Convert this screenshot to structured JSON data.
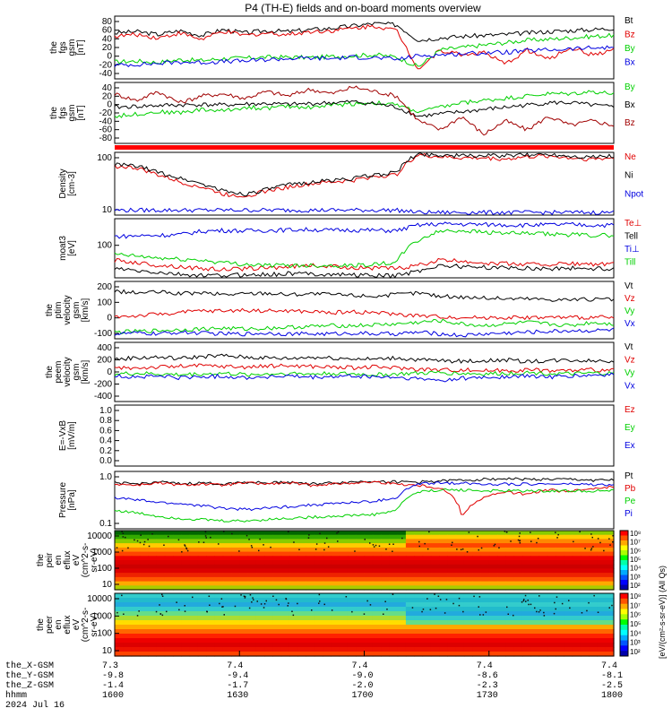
{
  "title": "P4 (TH-E) fields and on-board moments overview",
  "date_label": "2024 Jul 16",
  "colorbar_label": "[eV/(cm²-s-sr-eV)] (All Qs)",
  "ephemeris": {
    "rows": [
      {
        "name": "the_X-GSM",
        "values": [
          "7.3",
          "7.4",
          "7.4",
          "7.4",
          "7.4"
        ]
      },
      {
        "name": "the_Y-GSM",
        "values": [
          "-9.8",
          "-9.4",
          "-9.0",
          "-8.6",
          "-8.1"
        ]
      },
      {
        "name": "the_Z-GSM",
        "values": [
          "-1.4",
          "-1.7",
          "-2.0",
          "-2.3",
          "-2.5"
        ]
      },
      {
        "name": "hhmm",
        "values": [
          "1600",
          "1630",
          "1700",
          "1730",
          "1800"
        ]
      }
    ]
  },
  "colors": {
    "black": "#000000",
    "red": "#e00000",
    "green": "#00d000",
    "blue": "#0000e0",
    "darkred": "#a00000",
    "bar": "#ff0000"
  },
  "chart_data": [
    {
      "type": "line",
      "ylabel": [
        "the",
        "fgs",
        "gsm",
        "[nT]"
      ],
      "yticks": [
        "80",
        "60",
        "40",
        "20",
        "0",
        "-20",
        "-40"
      ],
      "ylim": [
        -40,
        90
      ],
      "series": [
        {
          "name": "Bt",
          "color": "black",
          "values": [
            55,
            58,
            52,
            60,
            50,
            62,
            55,
            60,
            58,
            62,
            65,
            70,
            75,
            72,
            40,
            45,
            48,
            50,
            52,
            55,
            58,
            60,
            62,
            65
          ]
        },
        {
          "name": "Bz",
          "color": "red",
          "values": [
            48,
            52,
            45,
            55,
            42,
            58,
            50,
            55,
            52,
            58,
            60,
            65,
            70,
            60,
            -20,
            20,
            10,
            15,
            -10,
            20,
            0,
            25,
            10,
            20
          ]
        },
        {
          "name": "By",
          "color": "green",
          "values": [
            -5,
            -3,
            -6,
            0,
            -2,
            2,
            3,
            5,
            5,
            4,
            6,
            8,
            10,
            5,
            -15,
            20,
            25,
            30,
            35,
            40,
            42,
            45,
            48,
            50
          ]
        },
        {
          "name": "Bx",
          "color": "blue",
          "values": [
            -12,
            -10,
            -8,
            -5,
            -6,
            -4,
            -3,
            0,
            2,
            3,
            2,
            5,
            4,
            0,
            8,
            10,
            12,
            14,
            15,
            18,
            20,
            22,
            24,
            25
          ]
        }
      ]
    },
    {
      "type": "line",
      "ylabel": [
        "the",
        "fgs",
        "gsm",
        "[nT]"
      ],
      "yticks": [
        "40",
        "20",
        "0",
        "-20",
        "-40",
        "-60",
        "-80"
      ],
      "ylim": [
        -90,
        45
      ],
      "series": [
        {
          "name": "By",
          "color": "green",
          "values": [
            -30,
            -25,
            -20,
            -22,
            -15,
            -18,
            -10,
            -12,
            -8,
            -10,
            -5,
            -2,
            0,
            -5,
            -20,
            -10,
            0,
            5,
            10,
            15,
            20,
            20,
            25,
            20
          ]
        },
        {
          "name": "Bx",
          "color": "black",
          "values": [
            -10,
            -8,
            -6,
            -5,
            -4,
            -5,
            -3,
            -2,
            -4,
            -2,
            0,
            2,
            -2,
            -10,
            -30,
            -25,
            -20,
            -15,
            -10,
            -5,
            0,
            0,
            -5,
            -10
          ]
        },
        {
          "name": "Bz",
          "color": "darkred",
          "values": [
            20,
            5,
            25,
            0,
            15,
            20,
            10,
            25,
            15,
            30,
            20,
            35,
            25,
            15,
            -40,
            -60,
            -30,
            -70,
            -40,
            -60,
            -30,
            -50,
            -40,
            -50
          ]
        }
      ]
    },
    {
      "type": "line",
      "ylabel": [
        "Density",
        "[cm-3]"
      ],
      "yticks": [
        "100",
        "10"
      ],
      "yscale": "log",
      "ylim": [
        3,
        110
      ],
      "series": [
        {
          "name": "Ne",
          "color": "red",
          "values": [
            50,
            45,
            30,
            20,
            15,
            10,
            9,
            12,
            15,
            18,
            20,
            22,
            28,
            30,
            95,
            85,
            80,
            80,
            75,
            85,
            90,
            80,
            75,
            80
          ]
        },
        {
          "name": "Ni",
          "color": "black",
          "values": [
            55,
            50,
            35,
            25,
            18,
            12,
            10,
            13,
            17,
            20,
            22,
            25,
            30,
            35,
            100,
            95,
            90,
            92,
            90,
            95,
            100,
            90,
            85,
            90
          ]
        },
        {
          "name": "Npot",
          "color": "blue",
          "values": [
            4,
            4,
            4,
            4,
            4,
            4,
            4,
            4,
            4,
            4,
            4,
            4,
            4,
            4,
            3.5,
            3.5,
            3.5,
            3.5,
            3.5,
            3.5,
            3.5,
            3.5,
            3.5,
            3.5
          ]
        }
      ]
    },
    {
      "type": "line",
      "ylabel": [
        "moat3",
        "[eV]"
      ],
      "yticks": [
        "100"
      ],
      "yscale": "log",
      "ylim": [
        15,
        400
      ],
      "series": [
        {
          "name": "Te⊥",
          "color": "red",
          "values": [
            40,
            35,
            30,
            28,
            25,
            24,
            25,
            26,
            28,
            30,
            28,
            27,
            26,
            25,
            30,
            40,
            38,
            35,
            33,
            32,
            32,
            33,
            32,
            32
          ]
        },
        {
          "name": "Tell",
          "color": "black",
          "values": [
            25,
            22,
            20,
            18,
            17,
            17,
            18,
            18,
            19,
            19,
            18,
            18,
            17,
            17,
            22,
            30,
            28,
            27,
            26,
            26,
            25,
            26,
            25,
            25
          ]
        },
        {
          "name": "Ti⊥",
          "color": "blue",
          "values": [
            150,
            155,
            160,
            165,
            200,
            210,
            205,
            210,
            215,
            220,
            210,
            215,
            210,
            205,
            280,
            300,
            295,
            290,
            285,
            280,
            285,
            290,
            280,
            280
          ]
        },
        {
          "name": "Till",
          "color": "green",
          "values": [
            55,
            50,
            45,
            42,
            40,
            35,
            32,
            30,
            30,
            30,
            30,
            30,
            32,
            35,
            120,
            200,
            210,
            190,
            180,
            175,
            170,
            165,
            160,
            160
          ]
        }
      ]
    },
    {
      "type": "line",
      "ylabel": [
        "the",
        "ptim",
        "velocity",
        "gsm",
        "[km/s]"
      ],
      "yticks": [
        "200",
        "100",
        "0",
        "-100"
      ],
      "ylim": [
        -130,
        220
      ],
      "series": [
        {
          "name": "Vt",
          "color": "black",
          "values": [
            160,
            150,
            155,
            145,
            150,
            140,
            145,
            150,
            140,
            145,
            140,
            135,
            130,
            140,
            150,
            130,
            125,
            120,
            115,
            115,
            110,
            110,
            110,
            110
          ]
        },
        {
          "name": "Vz",
          "color": "red",
          "values": [
            5,
            10,
            20,
            30,
            40,
            40,
            45,
            40,
            40,
            35,
            30,
            35,
            30,
            20,
            10,
            5,
            0,
            0,
            0,
            0,
            0,
            0,
            0,
            0
          ]
        },
        {
          "name": "Vy",
          "color": "green",
          "values": [
            -90,
            -85,
            -80,
            -75,
            -70,
            -65,
            -70,
            -65,
            -60,
            -55,
            -50,
            -50,
            -45,
            -40,
            -30,
            -20,
            -40,
            -50,
            -40,
            -30,
            -40,
            -50,
            -30,
            -40
          ]
        },
        {
          "name": "Vx",
          "color": "blue",
          "values": [
            -100,
            -95,
            -100,
            -90,
            -95,
            -100,
            -100,
            -95,
            -100,
            -100,
            -100,
            -95,
            -100,
            -100,
            -90,
            -100,
            -110,
            -100,
            -95,
            -90,
            -85,
            -80,
            -80,
            -75
          ]
        }
      ]
    },
    {
      "type": "line",
      "ylabel": [
        "the",
        "peem",
        "velocity",
        "gsm",
        "[km/s]"
      ],
      "yticks": [
        "400",
        "200",
        "0",
        "-200",
        "-400"
      ],
      "ylim": [
        -420,
        420
      ],
      "series": [
        {
          "name": "Vt",
          "color": "black",
          "values": [
            180,
            200,
            210,
            190,
            220,
            230,
            210,
            200,
            190,
            210,
            200,
            190,
            180,
            200,
            170,
            160,
            150,
            160,
            170,
            150,
            160,
            170,
            160,
            160
          ]
        },
        {
          "name": "Vz",
          "color": "red",
          "values": [
            50,
            60,
            70,
            80,
            90,
            80,
            70,
            80,
            90,
            80,
            70,
            60,
            70,
            60,
            40,
            30,
            30,
            20,
            20,
            30,
            20,
            20,
            30,
            20
          ]
        },
        {
          "name": "Vy",
          "color": "green",
          "values": [
            -30,
            -20,
            -30,
            -40,
            -30,
            -20,
            -40,
            -30,
            -20,
            -30,
            -20,
            -30,
            -40,
            -30,
            -20,
            -10,
            -20,
            -30,
            -20,
            -10,
            -20,
            -30,
            -20,
            -20
          ]
        },
        {
          "name": "Vx",
          "color": "blue",
          "values": [
            -60,
            -70,
            -60,
            -80,
            -70,
            -60,
            -80,
            -70,
            -60,
            -80,
            -70,
            -60,
            -70,
            -80,
            -100,
            -120,
            -90,
            -80,
            -70,
            -60,
            -70,
            -60,
            -50,
            -40
          ]
        }
      ]
    },
    {
      "type": "line",
      "ylabel": [
        "E=-VxB",
        "[mV/m]"
      ],
      "yticks": [
        "1.0",
        "0.8",
        "0.6",
        "0.4",
        "0.2",
        "0.0"
      ],
      "ylim": [
        -0.05,
        1.0
      ],
      "series": [
        {
          "name": "Ez",
          "color": "red",
          "values": []
        },
        {
          "name": "Ey",
          "color": "green",
          "values": []
        },
        {
          "name": "Ex",
          "color": "blue",
          "values": []
        }
      ]
    },
    {
      "type": "line",
      "ylabel": [
        "Pressure",
        "[nPa]"
      ],
      "yticks": [
        "1.0",
        "0.1"
      ],
      "yscale": "log",
      "ylim": [
        0.02,
        3
      ],
      "series": [
        {
          "name": "Pt",
          "color": "black",
          "values": [
            1.1,
            1.0,
            1.2,
            1.0,
            1.1,
            1.0,
            1.2,
            1.1,
            1.2,
            1.0,
            1.1,
            1.2,
            1.3,
            1.2,
            1.2,
            1.3,
            1.4,
            1.5,
            1.6,
            1.5,
            1.5,
            1.5,
            1.4,
            1.4
          ]
        },
        {
          "name": "Pb",
          "color": "red",
          "values": [
            1.0,
            0.9,
            1.1,
            0.9,
            1.0,
            0.9,
            1.1,
            1.0,
            1.1,
            0.9,
            1.0,
            1.1,
            1.2,
            1.0,
            0.9,
            0.7,
            0.05,
            0.3,
            0.5,
            0.4,
            0.6,
            0.5,
            0.7,
            0.8
          ]
        },
        {
          "name": "Pe",
          "color": "green",
          "values": [
            0.1,
            0.08,
            0.06,
            0.05,
            0.045,
            0.04,
            0.04,
            0.045,
            0.05,
            0.055,
            0.06,
            0.065,
            0.07,
            0.1,
            0.5,
            0.6,
            0.6,
            0.55,
            0.55,
            0.55,
            0.55,
            0.55,
            0.55,
            0.55
          ]
        },
        {
          "name": "Pi",
          "color": "blue",
          "values": [
            0.3,
            0.25,
            0.2,
            0.18,
            0.15,
            0.12,
            0.11,
            0.12,
            0.14,
            0.16,
            0.18,
            0.2,
            0.22,
            0.3,
            1.0,
            1.1,
            1.1,
            1.0,
            1.0,
            1.0,
            1.0,
            1.0,
            0.95,
            0.9
          ]
        }
      ]
    },
    {
      "type": "heatmap",
      "ylabel": [
        "the",
        "peir",
        "en",
        "eflux",
        "eV",
        "(cm^2-s-",
        "sr-eV)"
      ],
      "yticks": [
        "10000",
        "1000",
        "100",
        "10"
      ],
      "yscale": "log"
    },
    {
      "type": "heatmap",
      "ylabel": [
        "the",
        "peer",
        "en",
        "eflux",
        "eV",
        "(cm^2-s-",
        "sr-eV)"
      ],
      "yticks": [
        "10000",
        "1000",
        "100",
        "10"
      ],
      "yscale": "log"
    }
  ],
  "colorbar_ticks_top": [
    "10⁸",
    "10⁷",
    "10⁶",
    "10⁵",
    "10⁴",
    "10³",
    "10²"
  ],
  "colorbar_ticks_bottom": [
    "10⁸",
    "10⁷",
    "10⁶",
    "10⁵",
    "10⁴",
    "10³",
    "10²"
  ]
}
